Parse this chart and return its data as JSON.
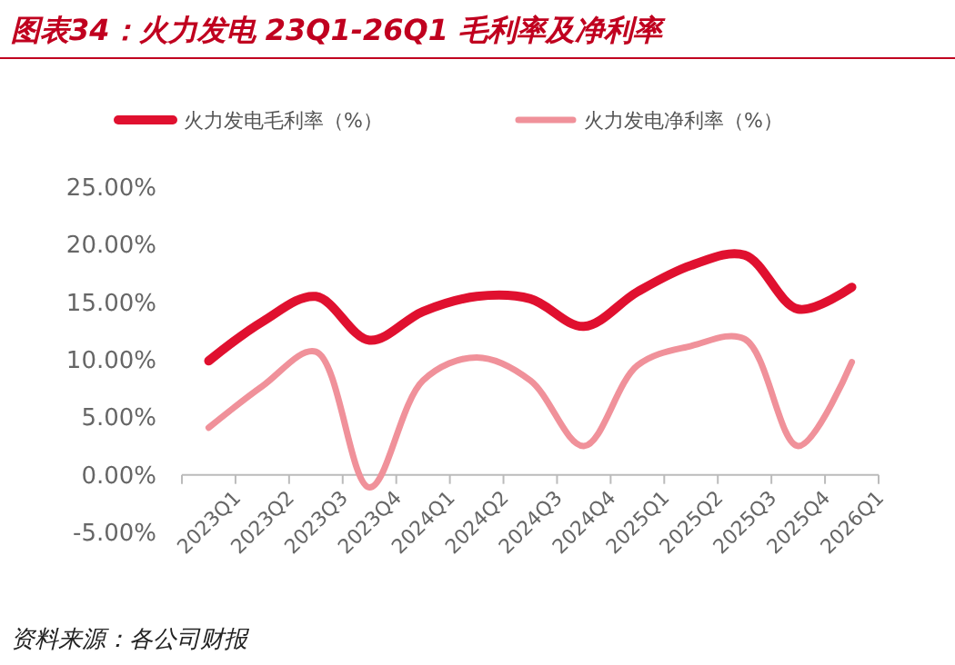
{
  "chart_data": {
    "type": "line",
    "title": "图表34：火力发电 23Q1-26Q1 毛利率及净利率",
    "annotations": [
      "资料来源：各公司财报"
    ],
    "categories": [
      "2023Q1",
      "2023Q2",
      "2023Q3",
      "2023Q4",
      "2024Q1",
      "2024Q2",
      "2024Q3",
      "2024Q4",
      "2025Q1",
      "2025Q2",
      "2025Q3",
      "2025Q4",
      "2026Q1"
    ],
    "series": [
      {
        "name": "火力发电毛利率（%）",
        "color": "#e0102f",
        "values": [
          9.9,
          13.3,
          15.5,
          11.7,
          14.2,
          15.5,
          15.3,
          12.9,
          15.9,
          18.2,
          19.1,
          14.4,
          16.3
        ]
      },
      {
        "name": "火力发电净利率（%）",
        "color": "#f0919a",
        "values": [
          4.1,
          7.7,
          10.7,
          -1.1,
          8.2,
          10.2,
          8.2,
          2.5,
          9.5,
          11.2,
          11.8,
          2.5,
          9.8
        ]
      }
    ],
    "ylim": [
      -5,
      25
    ],
    "yticks": [
      {
        "value": -5,
        "label": "-5.00%"
      },
      {
        "value": 0,
        "label": "0.00%"
      },
      {
        "value": 5,
        "label": "5.00%"
      },
      {
        "value": 10,
        "label": "10.00%"
      },
      {
        "value": 15,
        "label": "15.00%"
      },
      {
        "value": 20,
        "label": "20.00%"
      },
      {
        "value": 25,
        "label": "25.00%"
      }
    ],
    "grid": false,
    "legend": "top",
    "marker": "none",
    "line_style": "solid"
  }
}
